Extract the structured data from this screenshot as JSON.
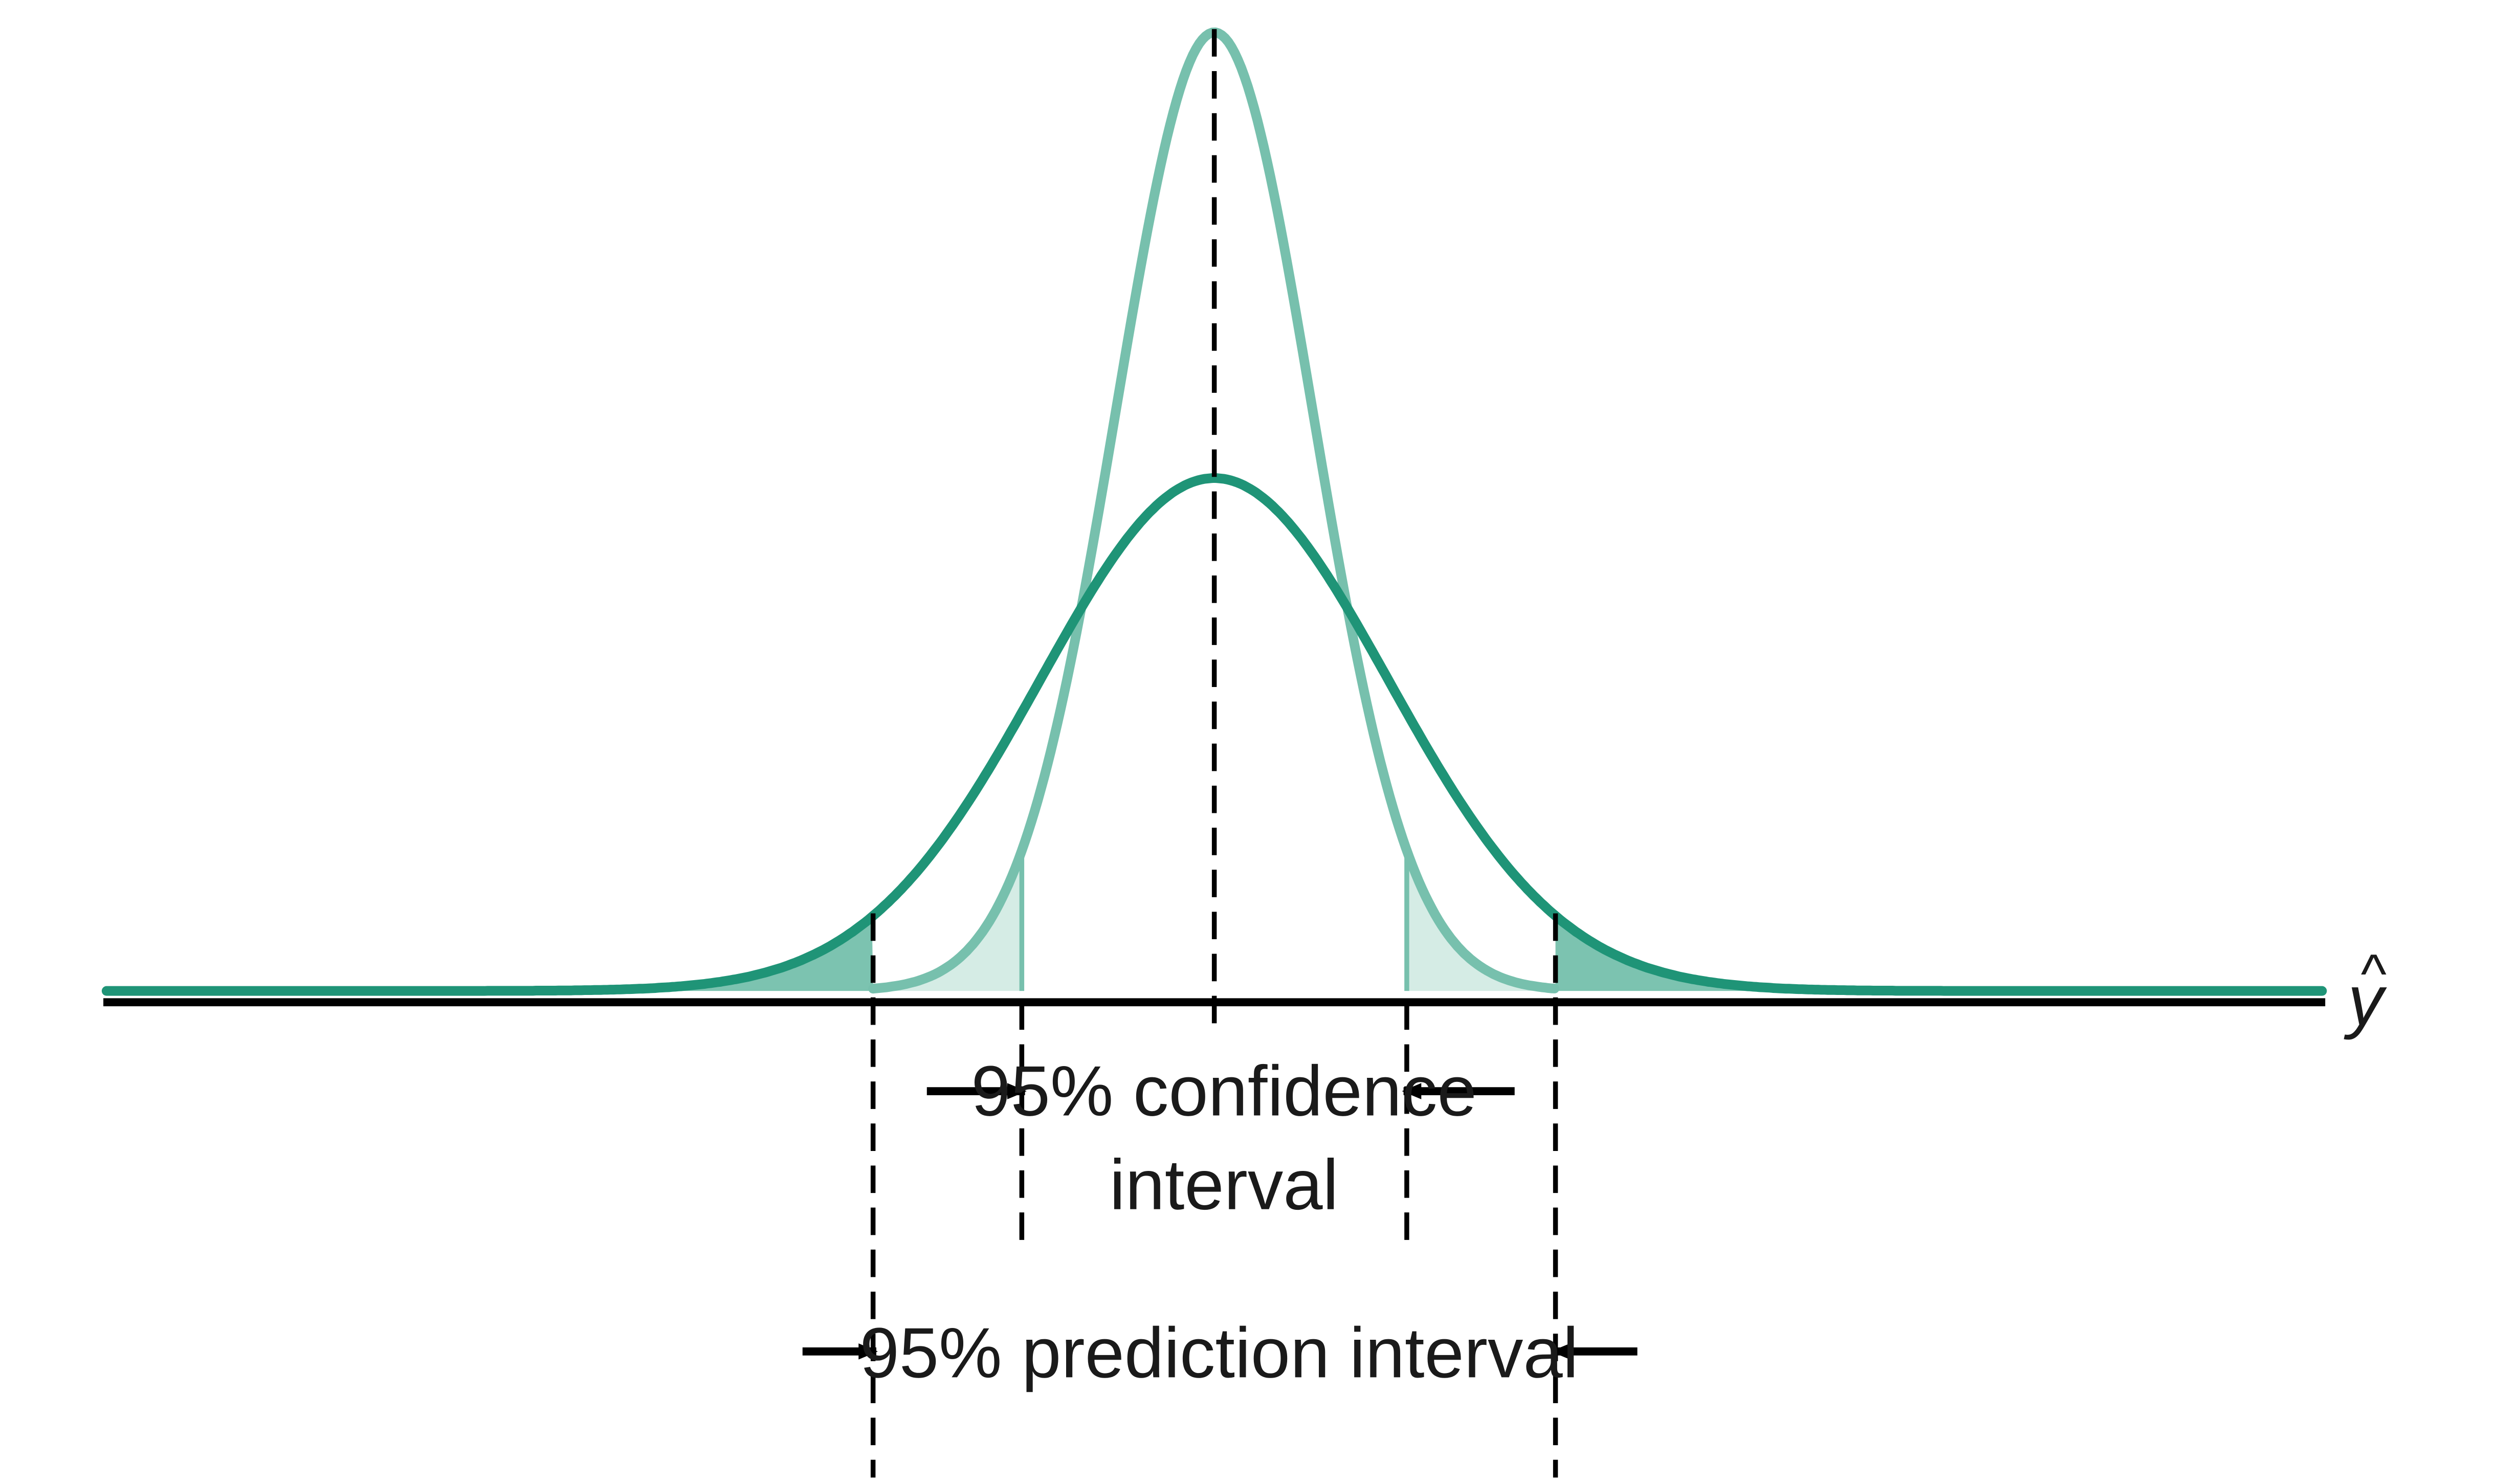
{
  "colors": {
    "axis": "#000000",
    "wide_curve": "#1f9477",
    "narrow_curve": "#77c0ad",
    "wide_tail_fill": "#7cc3b0",
    "narrow_tail_fill": "#d5ece5",
    "guide": "#000000",
    "text": "#1a1a1a"
  },
  "distributions": {
    "prediction": {
      "peak_fraction": 0.535,
      "sd_fraction": 0.1567
    },
    "confidence": {
      "peak_fraction": 1.0,
      "sd_fraction": 0.0884
    }
  },
  "axis": {
    "label_main": "y",
    "label_accent": "^"
  },
  "intervals": {
    "confidence": {
      "line1": "95% confidence",
      "line2": "interval"
    },
    "prediction": {
      "label": "95% prediction interval"
    }
  }
}
